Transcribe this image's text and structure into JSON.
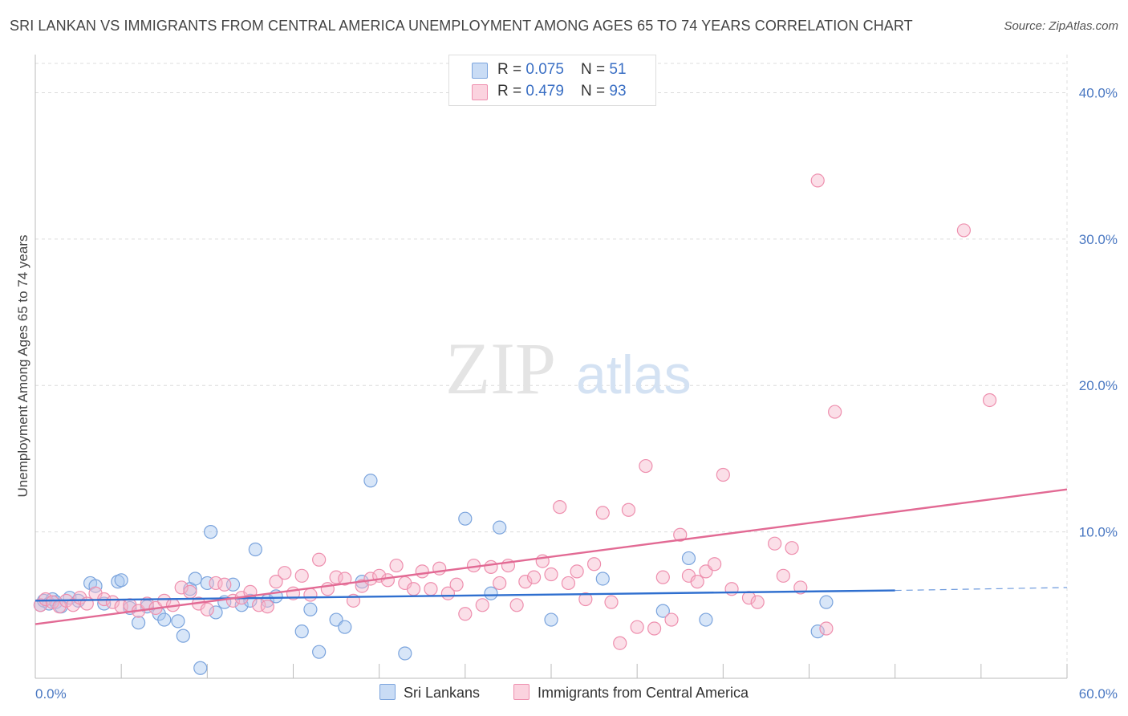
{
  "title": "SRI LANKAN VS IMMIGRANTS FROM CENTRAL AMERICA UNEMPLOYMENT AMONG AGES 65 TO 74 YEARS CORRELATION CHART",
  "source": "Source: ZipAtlas.com",
  "watermark": {
    "zip": "ZIP",
    "atlas": "atlas"
  },
  "legend_stats": [
    {
      "r_label": "R = ",
      "r_value": "0.075",
      "n_label": "N = ",
      "n_value": "51",
      "color": "#a9c7ef"
    },
    {
      "r_label": "R = ",
      "r_value": "0.479",
      "n_label": "N = ",
      "n_value": "93",
      "color": "#f7b9cc"
    }
  ],
  "chart_data": {
    "type": "scatter",
    "title": "SRI LANKAN VS IMMIGRANTS FROM CENTRAL AMERICA UNEMPLOYMENT AMONG AGES 65 TO 74 YEARS CORRELATION CHART",
    "xlabel": "",
    "ylabel": "Unemployment Among Ages 65 to 74 years",
    "xlim": [
      0,
      60
    ],
    "ylim": [
      0,
      42
    ],
    "x_tick_labels": [
      "0.0%",
      "60.0%"
    ],
    "y_ticks": [
      10,
      20,
      30,
      40
    ],
    "y_tick_labels": [
      "10.0%",
      "20.0%",
      "30.0%",
      "40.0%"
    ],
    "grid": true,
    "legend_position": "top-center",
    "series": [
      {
        "name": "Sri Lankans",
        "color": "#a9c7ef",
        "stroke": "#7ba4dd",
        "trend": {
          "x": [
            0,
            50
          ],
          "y": [
            5.3,
            6.0
          ],
          "dash_to": [
            60,
            6.2
          ],
          "color": "#2f6fcf"
        },
        "points": [
          [
            0.3,
            5.0
          ],
          [
            0.5,
            5.3
          ],
          [
            0.8,
            5.1
          ],
          [
            1.0,
            5.4
          ],
          [
            1.2,
            5.2
          ],
          [
            1.5,
            4.9
          ],
          [
            2.0,
            5.5
          ],
          [
            2.5,
            5.3
          ],
          [
            3.2,
            6.5
          ],
          [
            3.5,
            6.3
          ],
          [
            4.0,
            5.1
          ],
          [
            4.8,
            6.6
          ],
          [
            5.0,
            6.7
          ],
          [
            5.5,
            4.8
          ],
          [
            6.0,
            3.8
          ],
          [
            6.5,
            4.9
          ],
          [
            7.2,
            4.4
          ],
          [
            7.5,
            4.0
          ],
          [
            8.3,
            3.9
          ],
          [
            8.6,
            2.9
          ],
          [
            9.0,
            6.1
          ],
          [
            9.3,
            6.8
          ],
          [
            9.6,
            0.7
          ],
          [
            10.0,
            6.5
          ],
          [
            10.2,
            10.0
          ],
          [
            10.5,
            4.5
          ],
          [
            11.0,
            5.2
          ],
          [
            11.5,
            6.4
          ],
          [
            12.0,
            5.0
          ],
          [
            12.5,
            5.3
          ],
          [
            12.8,
            8.8
          ],
          [
            13.5,
            5.3
          ],
          [
            14.0,
            5.6
          ],
          [
            15.5,
            3.2
          ],
          [
            16.0,
            4.7
          ],
          [
            16.5,
            1.8
          ],
          [
            17.5,
            4.0
          ],
          [
            18.0,
            3.5
          ],
          [
            19.0,
            6.6
          ],
          [
            19.5,
            13.5
          ],
          [
            21.5,
            1.7
          ],
          [
            25.0,
            10.9
          ],
          [
            26.5,
            5.8
          ],
          [
            27.0,
            10.3
          ],
          [
            30.0,
            4.0
          ],
          [
            33.0,
            6.8
          ],
          [
            36.5,
            4.6
          ],
          [
            38.0,
            8.2
          ],
          [
            39.0,
            4.0
          ],
          [
            45.5,
            3.2
          ],
          [
            46.0,
            5.2
          ]
        ]
      },
      {
        "name": "Immigrants from Central America",
        "color": "#f7b9cc",
        "stroke": "#ee8fae",
        "trend": {
          "x": [
            0,
            60
          ],
          "y": [
            3.7,
            12.9
          ],
          "color": "#e26a94"
        },
        "points": [
          [
            0.3,
            5.0
          ],
          [
            0.6,
            5.4
          ],
          [
            1.0,
            5.2
          ],
          [
            1.4,
            4.9
          ],
          [
            1.8,
            5.3
          ],
          [
            2.2,
            5.0
          ],
          [
            2.6,
            5.5
          ],
          [
            3.0,
            5.1
          ],
          [
            3.5,
            5.8
          ],
          [
            4.0,
            5.4
          ],
          [
            4.5,
            5.2
          ],
          [
            5.0,
            4.9
          ],
          [
            5.5,
            5.0
          ],
          [
            6.0,
            4.6
          ],
          [
            6.5,
            5.1
          ],
          [
            7.0,
            4.8
          ],
          [
            7.5,
            5.3
          ],
          [
            8.0,
            5.0
          ],
          [
            8.5,
            6.2
          ],
          [
            9.0,
            5.9
          ],
          [
            9.5,
            5.1
          ],
          [
            10.0,
            4.7
          ],
          [
            10.5,
            6.5
          ],
          [
            11.0,
            6.4
          ],
          [
            11.5,
            5.3
          ],
          [
            12.0,
            5.5
          ],
          [
            12.5,
            5.9
          ],
          [
            13.0,
            5.0
          ],
          [
            13.5,
            4.9
          ],
          [
            14.0,
            6.6
          ],
          [
            14.5,
            7.2
          ],
          [
            15.0,
            5.8
          ],
          [
            15.5,
            7.0
          ],
          [
            16.0,
            5.7
          ],
          [
            16.5,
            8.1
          ],
          [
            17.0,
            6.1
          ],
          [
            17.5,
            6.9
          ],
          [
            18.0,
            6.8
          ],
          [
            18.5,
            5.3
          ],
          [
            19.0,
            6.3
          ],
          [
            19.5,
            6.8
          ],
          [
            20.0,
            7.0
          ],
          [
            20.5,
            6.7
          ],
          [
            21.0,
            7.7
          ],
          [
            21.5,
            6.5
          ],
          [
            22.0,
            6.1
          ],
          [
            22.5,
            7.3
          ],
          [
            23.0,
            6.1
          ],
          [
            23.5,
            7.5
          ],
          [
            24.0,
            5.8
          ],
          [
            24.5,
            6.4
          ],
          [
            25.0,
            4.4
          ],
          [
            25.5,
            7.7
          ],
          [
            26.0,
            5.0
          ],
          [
            26.5,
            7.6
          ],
          [
            27.0,
            6.5
          ],
          [
            27.5,
            7.7
          ],
          [
            28.0,
            5.0
          ],
          [
            28.5,
            6.6
          ],
          [
            29.0,
            6.9
          ],
          [
            29.5,
            8.0
          ],
          [
            30.0,
            7.1
          ],
          [
            30.5,
            11.7
          ],
          [
            31.0,
            6.5
          ],
          [
            31.5,
            7.3
          ],
          [
            32.0,
            5.4
          ],
          [
            32.5,
            7.8
          ],
          [
            33.0,
            11.3
          ],
          [
            33.5,
            5.2
          ],
          [
            34.0,
            2.4
          ],
          [
            34.5,
            11.5
          ],
          [
            35.0,
            3.5
          ],
          [
            35.5,
            14.5
          ],
          [
            36.0,
            3.4
          ],
          [
            36.5,
            6.9
          ],
          [
            37.0,
            4.0
          ],
          [
            37.5,
            9.8
          ],
          [
            38.0,
            7.0
          ],
          [
            38.5,
            6.6
          ],
          [
            39.0,
            7.3
          ],
          [
            39.5,
            7.8
          ],
          [
            40.0,
            13.9
          ],
          [
            40.5,
            6.1
          ],
          [
            41.5,
            5.5
          ],
          [
            42.0,
            5.2
          ],
          [
            43.0,
            9.2
          ],
          [
            43.5,
            7.0
          ],
          [
            44.0,
            8.9
          ],
          [
            44.5,
            6.2
          ],
          [
            46.0,
            3.4
          ],
          [
            45.5,
            34.0
          ],
          [
            54.0,
            30.6
          ],
          [
            55.5,
            19.0
          ],
          [
            46.5,
            18.2
          ]
        ]
      }
    ]
  }
}
